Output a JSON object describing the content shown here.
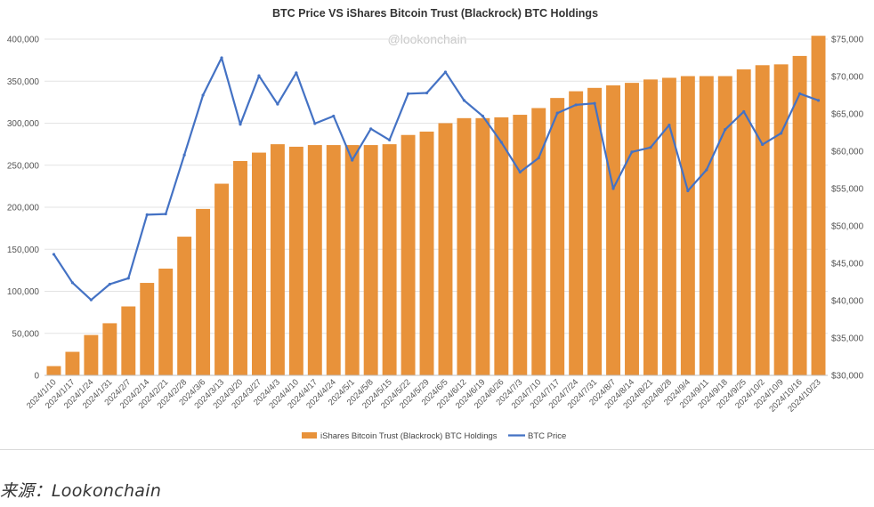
{
  "chart_data": {
    "type": "bar",
    "title": "BTC Price VS iShares Bitcoin Trust (Blackrock) BTC Holdings",
    "watermark": "@lookonchain",
    "categories": [
      "2024/1/10",
      "2024/1/17",
      "2024/1/24",
      "2024/1/31",
      "2024/2/7",
      "2024/2/14",
      "2024/2/21",
      "2024/2/28",
      "2024/3/6",
      "2024/3/13",
      "2024/3/20",
      "2024/3/27",
      "2024/4/3",
      "2024/4/10",
      "2024/4/17",
      "2024/4/24",
      "2024/5/1",
      "2024/5/8",
      "2024/5/15",
      "2024/5/22",
      "2024/5/29",
      "2024/6/5",
      "2024/6/12",
      "2024/6/19",
      "2024/6/26",
      "2024/7/3",
      "2024/7/10",
      "2024/7/17",
      "2024/7/24",
      "2024/7/31",
      "2024/8/7",
      "2024/8/14",
      "2024/8/21",
      "2024/8/28",
      "2024/9/4",
      "2024/9/11",
      "2024/9/18",
      "2024/9/25",
      "2024/10/2",
      "2024/10/9",
      "2024/10/16",
      "2024/10/23"
    ],
    "y_left": {
      "ylim": [
        0,
        400000
      ],
      "ticks": [
        "0",
        "50,000",
        "100,000",
        "150,000",
        "200,000",
        "250,000",
        "300,000",
        "350,000",
        "400,000"
      ]
    },
    "y_right": {
      "ylim": [
        30000,
        75000
      ],
      "ticks": [
        "$30,000",
        "$35,000",
        "$40,000",
        "$45,000",
        "$50,000",
        "$55,000",
        "$60,000",
        "$65,000",
        "$70,000",
        "$75,000"
      ]
    },
    "grid": "horizontal",
    "legend_position": "bottom",
    "series": [
      {
        "name": "iShares Bitcoin Trust (Blackrock) BTC Holdings",
        "type": "bar",
        "axis": "left",
        "color": "#E8923A",
        "values": [
          11000,
          28000,
          48000,
          62000,
          82000,
          110000,
          127000,
          165000,
          198000,
          228000,
          255000,
          265000,
          275000,
          272000,
          274000,
          274000,
          274000,
          274000,
          275000,
          286000,
          290000,
          300000,
          306000,
          306000,
          307000,
          310000,
          318000,
          330000,
          338000,
          342000,
          345000,
          348000,
          352000,
          354000,
          356000,
          356000,
          356000,
          364000,
          369000,
          370000,
          380000,
          404000
        ]
      },
      {
        "name": "BTC Price",
        "type": "line",
        "axis": "right",
        "color": "#4472C4",
        "values": [
          46200,
          42400,
          40100,
          42200,
          43000,
          51500,
          51600,
          59500,
          67500,
          72500,
          63600,
          70100,
          66300,
          70500,
          63700,
          64700,
          58800,
          63000,
          61500,
          67700,
          67800,
          70600,
          66800,
          64700,
          61200,
          57200,
          59100,
          65100,
          66200,
          66400,
          55000,
          59900,
          60500,
          63500,
          54700,
          57500,
          62900,
          65300,
          60900,
          62400,
          67700,
          66800
        ]
      }
    ]
  },
  "source_caption": "来源：Lookonchain"
}
